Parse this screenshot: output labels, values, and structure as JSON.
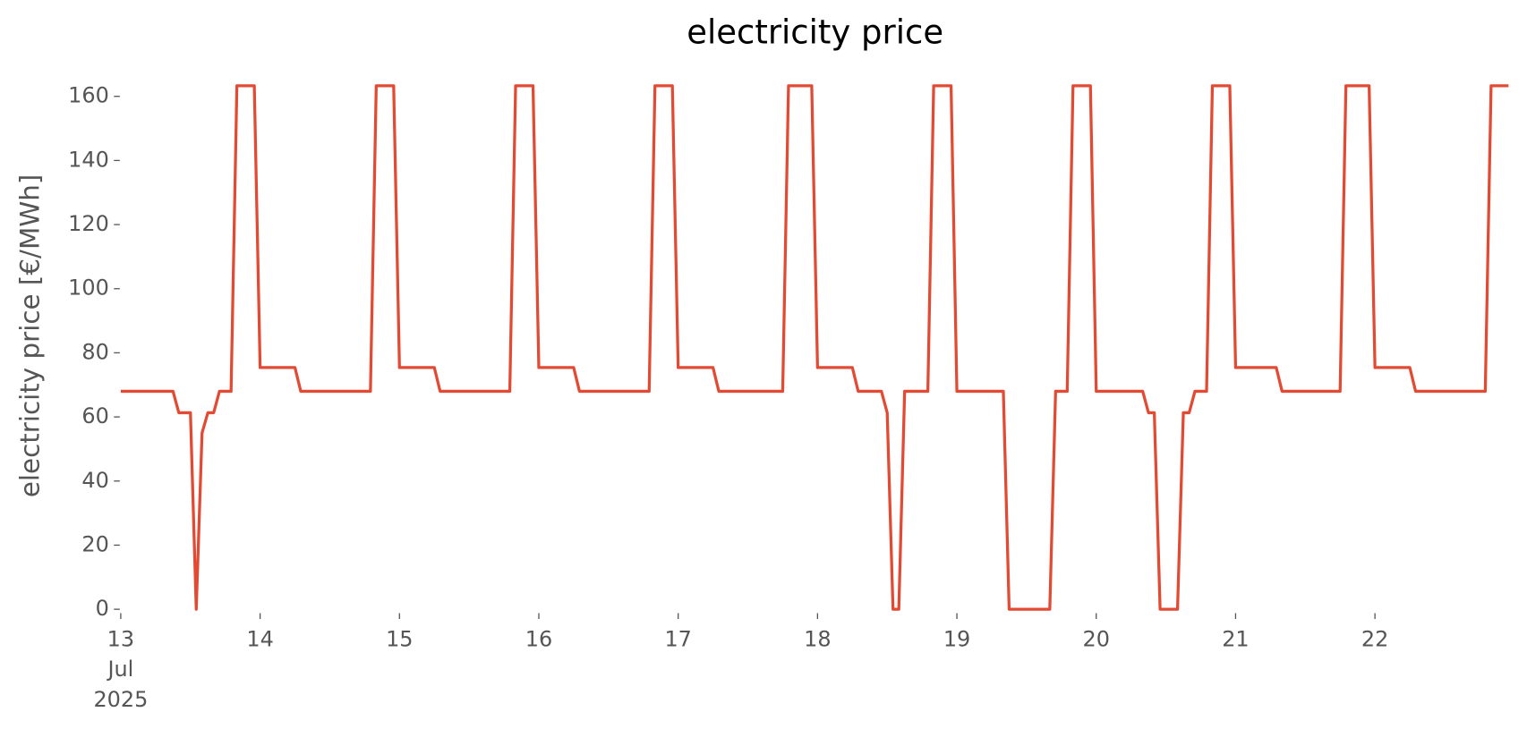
{
  "chart_data": {
    "type": "line",
    "title": "electricity price",
    "y_label": "electricity price [€/MWh]",
    "color": "#e24a33",
    "x": [
      0,
      9,
      10,
      12,
      13,
      14,
      15,
      16,
      17,
      19,
      20,
      23,
      24,
      30,
      31,
      43,
      44,
      47,
      48,
      54,
      55,
      67,
      68,
      71,
      72,
      78,
      79,
      91,
      92,
      95,
      96,
      102,
      103,
      114,
      115,
      119,
      120,
      126,
      127,
      131,
      132,
      133,
      134,
      135,
      139,
      140,
      143,
      144,
      152,
      153,
      160,
      161,
      163,
      164,
      167,
      168,
      176,
      177,
      178,
      179,
      182,
      183,
      184,
      185,
      187,
      188,
      191,
      192,
      199,
      200,
      210,
      211,
      215,
      216,
      222,
      223,
      235,
      236,
      239
    ],
    "values": [
      68,
      68,
      61.3,
      61.3,
      0,
      55,
      61.3,
      61.3,
      68,
      68,
      163.3,
      163.3,
      75.4,
      75.4,
      68,
      68,
      163.3,
      163.3,
      75.4,
      75.4,
      68,
      68,
      163.3,
      163.3,
      75.4,
      75.4,
      68,
      68,
      163.3,
      163.3,
      75.4,
      75.4,
      68,
      68,
      163.3,
      163.3,
      75.4,
      75.4,
      68,
      68,
      61.3,
      0,
      0,
      68,
      68,
      163.3,
      163.3,
      68,
      68,
      0,
      0,
      68,
      68,
      163.3,
      163.3,
      68,
      68,
      61.3,
      61.3,
      0,
      0,
      61.3,
      61.3,
      68,
      68,
      163.3,
      163.3,
      75.4,
      75.4,
      68,
      68,
      163.3,
      163.3,
      75.4,
      75.4,
      68,
      68,
      163.3,
      163.3
    ],
    "xlim": [
      0,
      239
    ],
    "xticks": [
      {
        "value": 0,
        "label": "13\nJul\n2025"
      },
      {
        "value": 24,
        "label": "14"
      },
      {
        "value": 48,
        "label": "15"
      },
      {
        "value": 72,
        "label": "16"
      },
      {
        "value": 96,
        "label": "17"
      },
      {
        "value": 120,
        "label": "18"
      },
      {
        "value": 144,
        "label": "19"
      },
      {
        "value": 168,
        "label": "20"
      },
      {
        "value": 192,
        "label": "21"
      },
      {
        "value": 216,
        "label": "22"
      }
    ],
    "ylim": [
      0,
      165
    ],
    "yticks": [
      0,
      20,
      40,
      60,
      80,
      100,
      120,
      140,
      160
    ]
  }
}
